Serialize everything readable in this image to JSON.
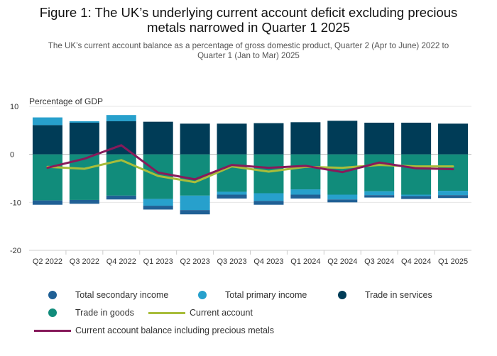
{
  "page": {
    "title_line1": "Figure 1: The UK’s underlying current account deficit excluding precious",
    "title_line2": "metals narrowed in Quarter 1 2025",
    "subtitle_line1": "The UK’s current account balance as a percentage of gross domestic product, Quarter 2 (Apr to June) 2022 to",
    "subtitle_line2": "Quarter 1 (Jan to Mar) 2025"
  },
  "colors": {
    "total_secondary_income": "#206095",
    "total_primary_income": "#27a0cc",
    "trade_in_services": "#003c57",
    "trade_in_goods": "#118c7b",
    "current_account": "#a8bd3a",
    "current_account_incl_pm": "#871a5b",
    "grid": "#e6e6e6",
    "zero_line": "#bbbbbb"
  },
  "chart_data": {
    "type": "bar",
    "stacked": true,
    "ylabel": "Percentage of GDP",
    "ylim": [
      -20,
      10
    ],
    "yticks": [
      10,
      0,
      -10,
      -20
    ],
    "grid": true,
    "legend_position": "bottom",
    "categories": [
      "Q2 2022",
      "Q3 2022",
      "Q4 2022",
      "Q1 2023",
      "Q2 2023",
      "Q3 2023",
      "Q4 2023",
      "Q1 2024",
      "Q2 2024",
      "Q3 2024",
      "Q4 2024",
      "Q1 2025"
    ],
    "series": [
      {
        "name": "Total secondary income",
        "kind": "bar",
        "color_key": "total_secondary_income",
        "values": [
          -0.9,
          -0.8,
          -0.8,
          -0.8,
          -0.9,
          -0.8,
          -0.8,
          -0.8,
          -0.6,
          -0.5,
          -0.6,
          -0.6
        ]
      },
      {
        "name": "Total primary income",
        "kind": "bar",
        "color_key": "total_primary_income",
        "values": [
          1.6,
          0.3,
          1.3,
          -1.4,
          -3.0,
          -0.6,
          -1.6,
          -1.1,
          -1.0,
          -0.8,
          -0.3,
          -0.9
        ]
      },
      {
        "name": "Trade in services",
        "kind": "bar",
        "color_key": "trade_in_services",
        "values": [
          6.1,
          6.6,
          6.9,
          6.8,
          6.4,
          6.4,
          6.5,
          6.7,
          7.0,
          6.6,
          6.6,
          6.4
        ]
      },
      {
        "name": "Trade in goods",
        "kind": "bar",
        "color_key": "trade_in_goods",
        "values": [
          -9.6,
          -9.5,
          -8.6,
          -9.3,
          -8.6,
          -7.8,
          -8.1,
          -7.3,
          -8.4,
          -7.7,
          -8.4,
          -7.6
        ]
      },
      {
        "name": "Current account",
        "kind": "line",
        "color_key": "current_account",
        "values": [
          -2.6,
          -3.0,
          -1.2,
          -4.5,
          -5.8,
          -2.5,
          -3.6,
          -2.6,
          -2.8,
          -2.2,
          -2.5,
          -2.5
        ]
      },
      {
        "name": "Current account balance including precious metals",
        "kind": "line",
        "color_key": "current_account_incl_pm",
        "values": [
          -2.8,
          -0.9,
          1.9,
          -3.8,
          -5.2,
          -2.2,
          -2.8,
          -2.4,
          -3.7,
          -1.7,
          -2.9,
          -3.1
        ]
      }
    ]
  }
}
